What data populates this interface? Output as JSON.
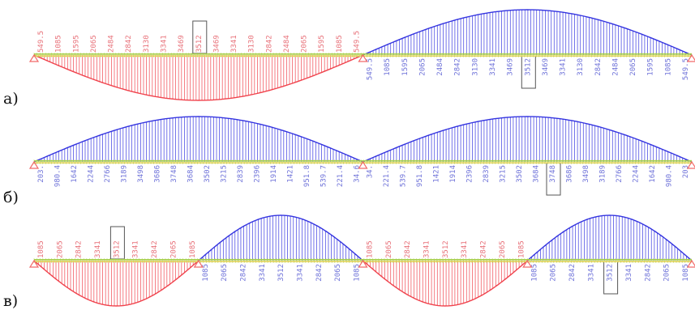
{
  "colors": {
    "positive": "#f0424c",
    "negative": "#3434e0",
    "positive_text": "#e8727a",
    "negative_text": "#6f73d9",
    "axis_green": "#a7cf4a",
    "axis_yellow": "#e6d35a",
    "support": "#f26a6a",
    "highlight_box": "#555555"
  },
  "panels": [
    {
      "label": "а)",
      "spans": [
        {
          "sign": "positive",
          "peak": 3512,
          "labels": [
            "549.5",
            "1085",
            "1595",
            "2065",
            "2484",
            "2842",
            "3130",
            "3341",
            "3469",
            "3512",
            "3469",
            "3341",
            "3130",
            "2842",
            "2484",
            "2065",
            "1595",
            "1085",
            "549.5"
          ],
          "highlight_index": 9
        },
        {
          "sign": "negative",
          "peak": 3512,
          "labels": [
            "549.5",
            "1085",
            "1595",
            "2065",
            "2484",
            "2842",
            "3130",
            "3341",
            "3469",
            "3512",
            "3469",
            "3341",
            "3130",
            "2842",
            "2484",
            "2065",
            "1595",
            "1085",
            "549.5"
          ],
          "highlight_index": 9
        }
      ]
    },
    {
      "label": "б)",
      "spans": [
        {
          "sign": "negative",
          "peak": 3748,
          "labels": [
            "203.",
            "980.4",
            "1642",
            "2244",
            "2766",
            "3189",
            "3498",
            "3686",
            "3748",
            "3684",
            "3502",
            "3215",
            "2839",
            "2396",
            "1914",
            "1421",
            "951.8",
            "539.7",
            "221.4",
            "34.6"
          ],
          "highlight_index": -1
        },
        {
          "sign": "negative",
          "peak": 3748,
          "labels": [
            "34.",
            "221.4",
            "539.7",
            "951.8",
            "1421",
            "1914",
            "2396",
            "2839",
            "3215",
            "3502",
            "3684",
            "3748",
            "3686",
            "3498",
            "3189",
            "2766",
            "2244",
            "1642",
            "980.4",
            "203"
          ],
          "highlight_index": 11
        }
      ]
    },
    {
      "label": "в)",
      "spans": [
        {
          "sign": "positive",
          "peak": 3512,
          "labels": [
            "1085",
            "2065",
            "2842",
            "3341",
            "3512",
            "3341",
            "2842",
            "2065",
            "1085"
          ],
          "highlight_index": 4
        },
        {
          "sign": "negative",
          "peak": 3512,
          "labels": [
            "1085",
            "2065",
            "2842",
            "3341",
            "3512",
            "3341",
            "2842",
            "2065",
            "1085"
          ],
          "highlight_index": -1
        },
        {
          "sign": "positive",
          "peak": 3512,
          "labels": [
            "1085",
            "2065",
            "2842",
            "3341",
            "3512",
            "3341",
            "2842",
            "2065",
            "1085"
          ],
          "highlight_index": -1
        },
        {
          "sign": "negative",
          "peak": 3512,
          "labels": [
            "1085",
            "2065",
            "2842",
            "3341",
            "3512",
            "3341",
            "2842",
            "2065",
            "1085"
          ],
          "highlight_index": 4
        }
      ]
    }
  ]
}
